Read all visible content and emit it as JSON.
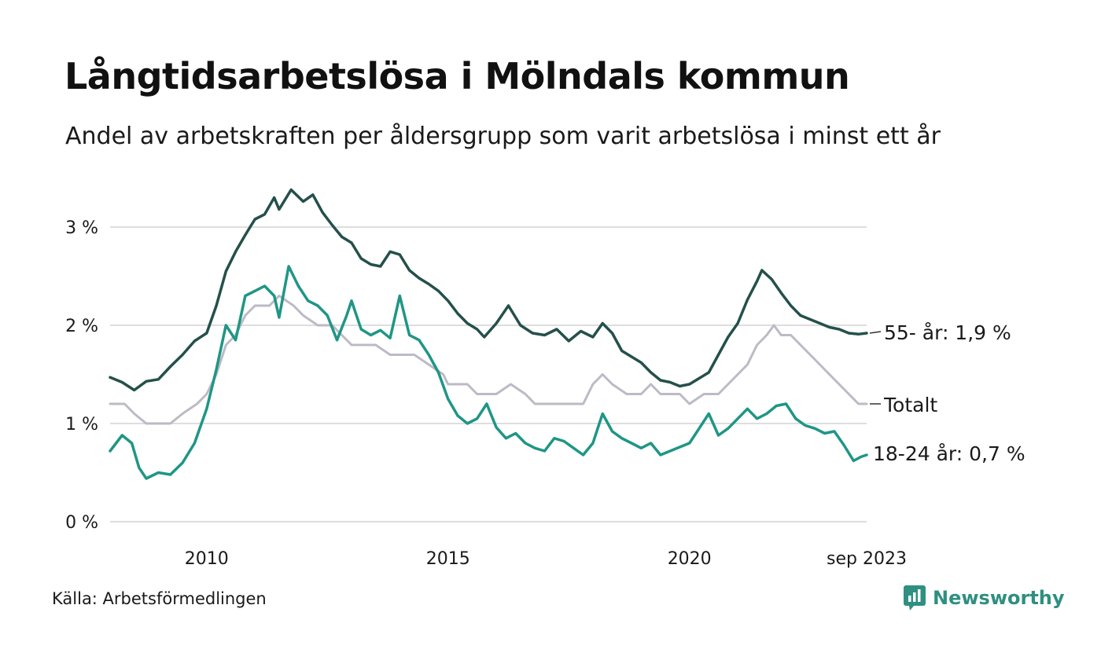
{
  "title": "Långtidsarbetslösa i Mölndals kommun",
  "subtitle": "Andel av arbetskraften per åldersgrupp som varit arbetslösa i minst ett år",
  "source": "Källa: Arbetsförmedlingen",
  "brand": "Newsworthy",
  "colors": {
    "dark_series": "#24504a",
    "teal_series": "#1f9685",
    "total_series": "#bdbac6",
    "grid": "#dedede",
    "brand": "#2f8f80"
  },
  "chart_data": {
    "type": "line",
    "title": "Långtidsarbetslösa i Mölndals kommun",
    "xlabel": "",
    "ylabel": "",
    "ylim": [
      0,
      3.5
    ],
    "xlim": [
      2008.0,
      2023.67
    ],
    "y_ticks": [
      {
        "value": 0,
        "label": "0 %"
      },
      {
        "value": 1,
        "label": "1 %"
      },
      {
        "value": 2,
        "label": "2 %"
      },
      {
        "value": 3,
        "label": "3 %"
      }
    ],
    "x_ticks": [
      {
        "value": 2010.0,
        "label": "2010"
      },
      {
        "value": 2015.0,
        "label": "2015"
      },
      {
        "value": 2020.0,
        "label": "2020"
      },
      {
        "value": 2023.67,
        "label": "sep 2023"
      }
    ],
    "series": [
      {
        "name": "55- år",
        "end_label": "55- år: 1,9 %",
        "color": "#24504a",
        "points": [
          [
            2008.0,
            1.47
          ],
          [
            2008.25,
            1.42
          ],
          [
            2008.5,
            1.34
          ],
          [
            2008.75,
            1.43
          ],
          [
            2009.0,
            1.45
          ],
          [
            2009.25,
            1.58
          ],
          [
            2009.5,
            1.7
          ],
          [
            2009.75,
            1.84
          ],
          [
            2010.0,
            1.92
          ],
          [
            2010.2,
            2.2
          ],
          [
            2010.4,
            2.55
          ],
          [
            2010.6,
            2.75
          ],
          [
            2010.8,
            2.92
          ],
          [
            2011.0,
            3.08
          ],
          [
            2011.2,
            3.13
          ],
          [
            2011.4,
            3.3
          ],
          [
            2011.5,
            3.18
          ],
          [
            2011.75,
            3.38
          ],
          [
            2012.0,
            3.26
          ],
          [
            2012.2,
            3.33
          ],
          [
            2012.4,
            3.15
          ],
          [
            2012.6,
            3.02
          ],
          [
            2012.8,
            2.9
          ],
          [
            2013.0,
            2.84
          ],
          [
            2013.2,
            2.68
          ],
          [
            2013.4,
            2.62
          ],
          [
            2013.6,
            2.6
          ],
          [
            2013.8,
            2.75
          ],
          [
            2014.0,
            2.72
          ],
          [
            2014.2,
            2.56
          ],
          [
            2014.4,
            2.48
          ],
          [
            2014.6,
            2.42
          ],
          [
            2014.8,
            2.35
          ],
          [
            2015.0,
            2.25
          ],
          [
            2015.2,
            2.12
          ],
          [
            2015.4,
            2.02
          ],
          [
            2015.6,
            1.96
          ],
          [
            2015.75,
            1.88
          ],
          [
            2016.0,
            2.02
          ],
          [
            2016.25,
            2.2
          ],
          [
            2016.5,
            2.0
          ],
          [
            2016.75,
            1.92
          ],
          [
            2017.0,
            1.9
          ],
          [
            2017.25,
            1.96
          ],
          [
            2017.5,
            1.84
          ],
          [
            2017.75,
            1.94
          ],
          [
            2018.0,
            1.88
          ],
          [
            2018.2,
            2.02
          ],
          [
            2018.4,
            1.92
          ],
          [
            2018.6,
            1.74
          ],
          [
            2018.8,
            1.68
          ],
          [
            2019.0,
            1.62
          ],
          [
            2019.2,
            1.52
          ],
          [
            2019.4,
            1.44
          ],
          [
            2019.6,
            1.42
          ],
          [
            2019.8,
            1.38
          ],
          [
            2020.0,
            1.4
          ],
          [
            2020.2,
            1.46
          ],
          [
            2020.4,
            1.52
          ],
          [
            2020.6,
            1.7
          ],
          [
            2020.8,
            1.88
          ],
          [
            2021.0,
            2.02
          ],
          [
            2021.2,
            2.26
          ],
          [
            2021.4,
            2.45
          ],
          [
            2021.5,
            2.56
          ],
          [
            2021.7,
            2.47
          ],
          [
            2021.9,
            2.33
          ],
          [
            2022.1,
            2.2
          ],
          [
            2022.3,
            2.1
          ],
          [
            2022.5,
            2.06
          ],
          [
            2022.7,
            2.02
          ],
          [
            2022.9,
            1.98
          ],
          [
            2023.1,
            1.96
          ],
          [
            2023.3,
            1.92
          ],
          [
            2023.5,
            1.91
          ],
          [
            2023.67,
            1.92
          ]
        ]
      },
      {
        "name": "Totalt",
        "end_label": "Totalt",
        "color": "#bdbac6",
        "points": [
          [
            2008.0,
            1.2
          ],
          [
            2008.3,
            1.2
          ],
          [
            2008.5,
            1.1
          ],
          [
            2008.75,
            1.0
          ],
          [
            2009.25,
            1.0
          ],
          [
            2009.5,
            1.1
          ],
          [
            2009.8,
            1.2
          ],
          [
            2010.0,
            1.3
          ],
          [
            2010.2,
            1.5
          ],
          [
            2010.4,
            1.8
          ],
          [
            2010.6,
            1.9
          ],
          [
            2010.8,
            2.1
          ],
          [
            2011.0,
            2.2
          ],
          [
            2011.3,
            2.2
          ],
          [
            2011.5,
            2.3
          ],
          [
            2011.8,
            2.2
          ],
          [
            2012.0,
            2.1
          ],
          [
            2012.3,
            2.0
          ],
          [
            2012.6,
            2.0
          ],
          [
            2012.8,
            1.9
          ],
          [
            2013.0,
            1.8
          ],
          [
            2013.3,
            1.8
          ],
          [
            2013.5,
            1.8
          ],
          [
            2013.8,
            1.7
          ],
          [
            2014.0,
            1.7
          ],
          [
            2014.3,
            1.7
          ],
          [
            2014.6,
            1.6
          ],
          [
            2014.9,
            1.5
          ],
          [
            2015.0,
            1.4
          ],
          [
            2015.4,
            1.4
          ],
          [
            2015.6,
            1.3
          ],
          [
            2016.0,
            1.3
          ],
          [
            2016.3,
            1.4
          ],
          [
            2016.6,
            1.3
          ],
          [
            2016.8,
            1.2
          ],
          [
            2017.5,
            1.2
          ],
          [
            2017.8,
            1.2
          ],
          [
            2018.0,
            1.4
          ],
          [
            2018.2,
            1.5
          ],
          [
            2018.4,
            1.4
          ],
          [
            2018.7,
            1.3
          ],
          [
            2019.0,
            1.3
          ],
          [
            2019.2,
            1.4
          ],
          [
            2019.4,
            1.3
          ],
          [
            2019.8,
            1.3
          ],
          [
            2020.0,
            1.2
          ],
          [
            2020.3,
            1.3
          ],
          [
            2020.6,
            1.3
          ],
          [
            2020.8,
            1.4
          ],
          [
            2021.0,
            1.5
          ],
          [
            2021.2,
            1.6
          ],
          [
            2021.4,
            1.8
          ],
          [
            2021.6,
            1.9
          ],
          [
            2021.75,
            2.0
          ],
          [
            2021.9,
            1.9
          ],
          [
            2022.1,
            1.9
          ],
          [
            2022.3,
            1.8
          ],
          [
            2022.5,
            1.7
          ],
          [
            2022.7,
            1.6
          ],
          [
            2022.9,
            1.5
          ],
          [
            2023.1,
            1.4
          ],
          [
            2023.3,
            1.3
          ],
          [
            2023.5,
            1.2
          ],
          [
            2023.67,
            1.2
          ]
        ]
      },
      {
        "name": "18-24 år",
        "end_label": "18-24 år: 0,7 %",
        "color": "#1f9685",
        "points": [
          [
            2008.0,
            0.72
          ],
          [
            2008.25,
            0.88
          ],
          [
            2008.45,
            0.8
          ],
          [
            2008.6,
            0.55
          ],
          [
            2008.75,
            0.44
          ],
          [
            2009.0,
            0.5
          ],
          [
            2009.25,
            0.48
          ],
          [
            2009.5,
            0.6
          ],
          [
            2009.75,
            0.8
          ],
          [
            2010.0,
            1.15
          ],
          [
            2010.2,
            1.55
          ],
          [
            2010.4,
            2.0
          ],
          [
            2010.6,
            1.85
          ],
          [
            2010.8,
            2.3
          ],
          [
            2011.0,
            2.35
          ],
          [
            2011.2,
            2.4
          ],
          [
            2011.4,
            2.3
          ],
          [
            2011.5,
            2.08
          ],
          [
            2011.7,
            2.6
          ],
          [
            2011.9,
            2.4
          ],
          [
            2012.1,
            2.25
          ],
          [
            2012.3,
            2.2
          ],
          [
            2012.5,
            2.1
          ],
          [
            2012.7,
            1.85
          ],
          [
            2012.9,
            2.1
          ],
          [
            2013.0,
            2.25
          ],
          [
            2013.2,
            1.96
          ],
          [
            2013.4,
            1.9
          ],
          [
            2013.6,
            1.95
          ],
          [
            2013.8,
            1.87
          ],
          [
            2014.0,
            2.3
          ],
          [
            2014.2,
            1.9
          ],
          [
            2014.4,
            1.85
          ],
          [
            2014.6,
            1.7
          ],
          [
            2014.8,
            1.52
          ],
          [
            2015.0,
            1.25
          ],
          [
            2015.2,
            1.08
          ],
          [
            2015.4,
            1.0
          ],
          [
            2015.6,
            1.05
          ],
          [
            2015.8,
            1.2
          ],
          [
            2016.0,
            0.96
          ],
          [
            2016.2,
            0.85
          ],
          [
            2016.4,
            0.9
          ],
          [
            2016.6,
            0.8
          ],
          [
            2016.8,
            0.75
          ],
          [
            2017.0,
            0.72
          ],
          [
            2017.2,
            0.85
          ],
          [
            2017.4,
            0.82
          ],
          [
            2017.6,
            0.75
          ],
          [
            2017.8,
            0.68
          ],
          [
            2018.0,
            0.8
          ],
          [
            2018.2,
            1.1
          ],
          [
            2018.4,
            0.92
          ],
          [
            2018.6,
            0.85
          ],
          [
            2018.8,
            0.8
          ],
          [
            2019.0,
            0.75
          ],
          [
            2019.2,
            0.8
          ],
          [
            2019.4,
            0.68
          ],
          [
            2019.6,
            0.72
          ],
          [
            2019.8,
            0.76
          ],
          [
            2020.0,
            0.8
          ],
          [
            2020.2,
            0.95
          ],
          [
            2020.4,
            1.1
          ],
          [
            2020.6,
            0.88
          ],
          [
            2020.8,
            0.95
          ],
          [
            2021.0,
            1.05
          ],
          [
            2021.2,
            1.15
          ],
          [
            2021.4,
            1.05
          ],
          [
            2021.6,
            1.1
          ],
          [
            2021.8,
            1.18
          ],
          [
            2022.0,
            1.2
          ],
          [
            2022.2,
            1.05
          ],
          [
            2022.4,
            0.98
          ],
          [
            2022.6,
            0.95
          ],
          [
            2022.8,
            0.9
          ],
          [
            2023.0,
            0.92
          ],
          [
            2023.2,
            0.78
          ],
          [
            2023.4,
            0.62
          ],
          [
            2023.55,
            0.66
          ],
          [
            2023.67,
            0.68
          ]
        ]
      }
    ]
  }
}
